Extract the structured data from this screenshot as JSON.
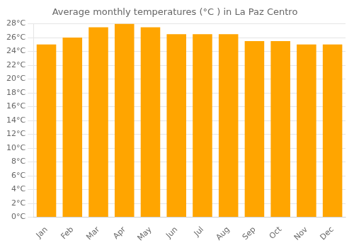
{
  "chart_data": {
    "type": "bar",
    "title": "Average monthly temperatures (°C ) in La Paz Centro",
    "categories": [
      "Jan",
      "Feb",
      "Mar",
      "Apr",
      "May",
      "Jun",
      "Jul",
      "Aug",
      "Sep",
      "Oct",
      "Nov",
      "Dec"
    ],
    "values": [
      25.0,
      26.0,
      27.5,
      28.0,
      27.5,
      26.5,
      26.5,
      26.5,
      25.5,
      25.5,
      25.0,
      25.0
    ],
    "color": "#FFA500",
    "ylim": [
      0,
      28
    ],
    "yticks": [
      {
        "value": 0,
        "label": "0°C"
      },
      {
        "value": 2,
        "label": "2°C"
      },
      {
        "value": 4,
        "label": "4°C"
      },
      {
        "value": 6,
        "label": "6°C"
      },
      {
        "value": 8,
        "label": "8°C"
      },
      {
        "value": 10,
        "label": "10°C"
      },
      {
        "value": 12,
        "label": "12°C"
      },
      {
        "value": 14,
        "label": "14°C"
      },
      {
        "value": 16,
        "label": "16°C"
      },
      {
        "value": 18,
        "label": "18°C"
      },
      {
        "value": 20,
        "label": "20°C"
      },
      {
        "value": 22,
        "label": "22°C"
      },
      {
        "value": 24,
        "label": "24°C"
      },
      {
        "value": 26,
        "label": "26°C"
      },
      {
        "value": 28,
        "label": "28°C"
      }
    ],
    "grid": true
  }
}
